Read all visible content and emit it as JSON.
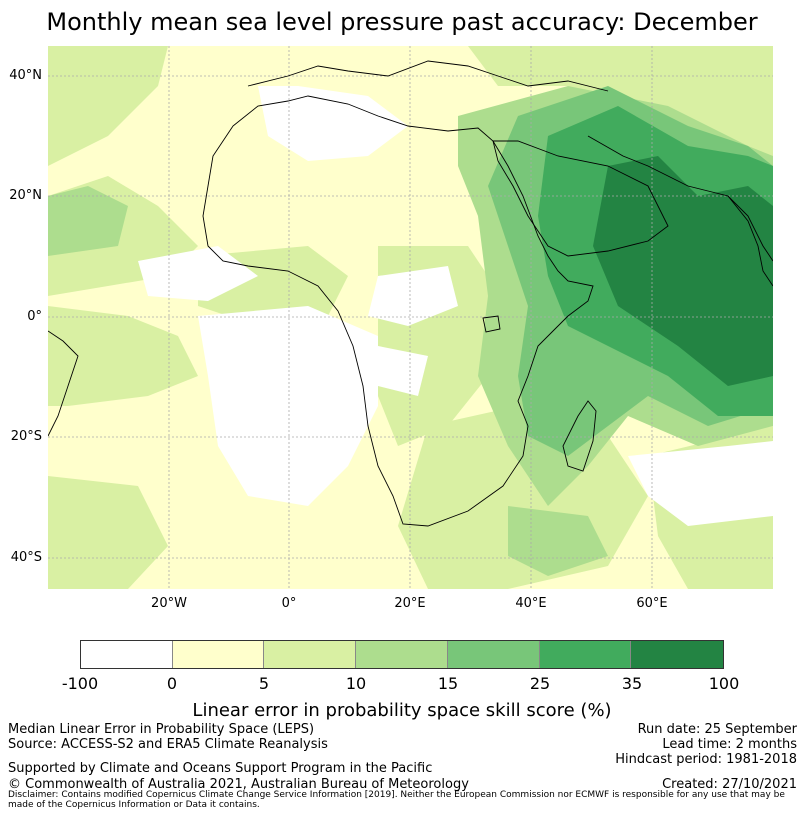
{
  "title": "Monthly mean sea level pressure past accuracy: December",
  "map": {
    "lat_labels": [
      "40°N",
      "20°N",
      "0°",
      "20°S",
      "40°S"
    ],
    "lon_labels": [
      "20°W",
      "0°",
      "20°E",
      "40°E",
      "60°E"
    ]
  },
  "colorbar": {
    "ticks": [
      "-100",
      "0",
      "5",
      "10",
      "15",
      "25",
      "35",
      "100"
    ],
    "colors": [
      "#ffffff",
      "#ffffcc",
      "#d9f0a3",
      "#addd8e",
      "#78c679",
      "#41ab5d",
      "#238443"
    ],
    "label": "Linear error in probability space skill score (%)"
  },
  "footer": {
    "left_line1": "Median Linear Error in Probability Space (LEPS)",
    "left_line2": "Source: ACCESS-S2 and ERA5 Climate Reanalysis",
    "support": "Supported by Climate and Oceans Support Program in the Pacific",
    "copyright": "© Commonwealth of Australia 2021, Australian Bureau of Meteorology",
    "run_date": "Run date: 25 September",
    "lead_time": "Lead time: 2 months",
    "hindcast": "Hindcast period: 1981-2018",
    "created": "Created: 27/10/2021",
    "disclaimer": "Disclaimer: Contains modified Copernicus Climate Change Service Information [2019]. Neither the European Commission nor ECMWF is responsible for any use that may be made of the Copernicus Information or Data it contains."
  }
}
